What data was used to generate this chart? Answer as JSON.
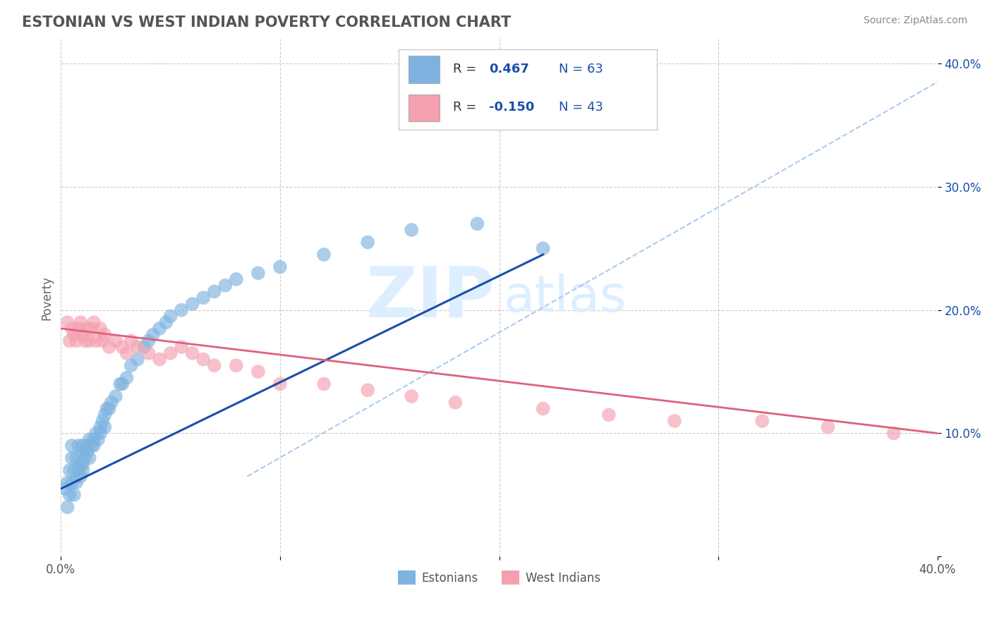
{
  "title": "ESTONIAN VS WEST INDIAN POVERTY CORRELATION CHART",
  "source": "Source: ZipAtlas.com",
  "ylabel": "Poverty",
  "xlim": [
    0.0,
    0.4
  ],
  "ylim": [
    0.0,
    0.42
  ],
  "grid_color": "#cccccc",
  "background_color": "#ffffff",
  "estonian_color": "#7eb3e0",
  "west_indian_color": "#f4a0b0",
  "estonian_line_color": "#1a4faa",
  "west_indian_line_color": "#e0607a",
  "trend_dash_color": "#aaccee",
  "legend_text_color": "#1a4faa",
  "legend_R_color": "#333333",
  "ytick_color": "#1a4faa",
  "xtick_color": "#555555",
  "watermark_color": "#ddeeff",
  "estonian_seed": 42,
  "west_indian_seed": 77,
  "est_x": [
    0.002,
    0.003,
    0.003,
    0.004,
    0.004,
    0.005,
    0.005,
    0.005,
    0.006,
    0.006,
    0.007,
    0.007,
    0.008,
    0.008,
    0.009,
    0.009,
    0.01,
    0.01,
    0.01,
    0.01,
    0.011,
    0.012,
    0.012,
    0.013,
    0.013,
    0.014,
    0.015,
    0.015,
    0.016,
    0.017,
    0.018,
    0.018,
    0.019,
    0.02,
    0.02,
    0.021,
    0.022,
    0.023,
    0.025,
    0.027,
    0.028,
    0.03,
    0.032,
    0.035,
    0.038,
    0.04,
    0.042,
    0.045,
    0.048,
    0.05,
    0.055,
    0.06,
    0.065,
    0.07,
    0.075,
    0.08,
    0.09,
    0.1,
    0.12,
    0.14,
    0.16,
    0.19,
    0.22
  ],
  "est_y": [
    0.055,
    0.06,
    0.04,
    0.07,
    0.05,
    0.08,
    0.06,
    0.09,
    0.07,
    0.05,
    0.06,
    0.08,
    0.07,
    0.09,
    0.065,
    0.075,
    0.07,
    0.085,
    0.075,
    0.09,
    0.08,
    0.085,
    0.09,
    0.095,
    0.08,
    0.09,
    0.09,
    0.095,
    0.1,
    0.095,
    0.1,
    0.105,
    0.11,
    0.105,
    0.115,
    0.12,
    0.12,
    0.125,
    0.13,
    0.14,
    0.14,
    0.145,
    0.155,
    0.16,
    0.17,
    0.175,
    0.18,
    0.185,
    0.19,
    0.195,
    0.2,
    0.205,
    0.21,
    0.215,
    0.22,
    0.225,
    0.23,
    0.235,
    0.245,
    0.255,
    0.265,
    0.27,
    0.25
  ],
  "wi_x": [
    0.003,
    0.004,
    0.005,
    0.006,
    0.007,
    0.008,
    0.009,
    0.01,
    0.011,
    0.012,
    0.013,
    0.014,
    0.015,
    0.016,
    0.018,
    0.019,
    0.02,
    0.022,
    0.025,
    0.028,
    0.03,
    0.032,
    0.035,
    0.04,
    0.045,
    0.05,
    0.055,
    0.06,
    0.065,
    0.07,
    0.08,
    0.09,
    0.1,
    0.12,
    0.14,
    0.16,
    0.18,
    0.22,
    0.25,
    0.28,
    0.32,
    0.35,
    0.38
  ],
  "wi_y": [
    0.19,
    0.175,
    0.185,
    0.18,
    0.175,
    0.185,
    0.19,
    0.18,
    0.175,
    0.185,
    0.175,
    0.185,
    0.19,
    0.175,
    0.185,
    0.175,
    0.18,
    0.17,
    0.175,
    0.17,
    0.165,
    0.175,
    0.17,
    0.165,
    0.16,
    0.165,
    0.17,
    0.165,
    0.16,
    0.155,
    0.155,
    0.15,
    0.14,
    0.14,
    0.135,
    0.13,
    0.125,
    0.12,
    0.115,
    0.11,
    0.11,
    0.105,
    0.1
  ],
  "est_line_x": [
    0.0,
    0.22
  ],
  "est_line_y": [
    0.055,
    0.245
  ],
  "wi_line_x": [
    0.0,
    0.4
  ],
  "wi_line_y": [
    0.185,
    0.1
  ],
  "dash_line_x": [
    0.085,
    0.4
  ],
  "dash_line_y": [
    0.065,
    0.385
  ]
}
